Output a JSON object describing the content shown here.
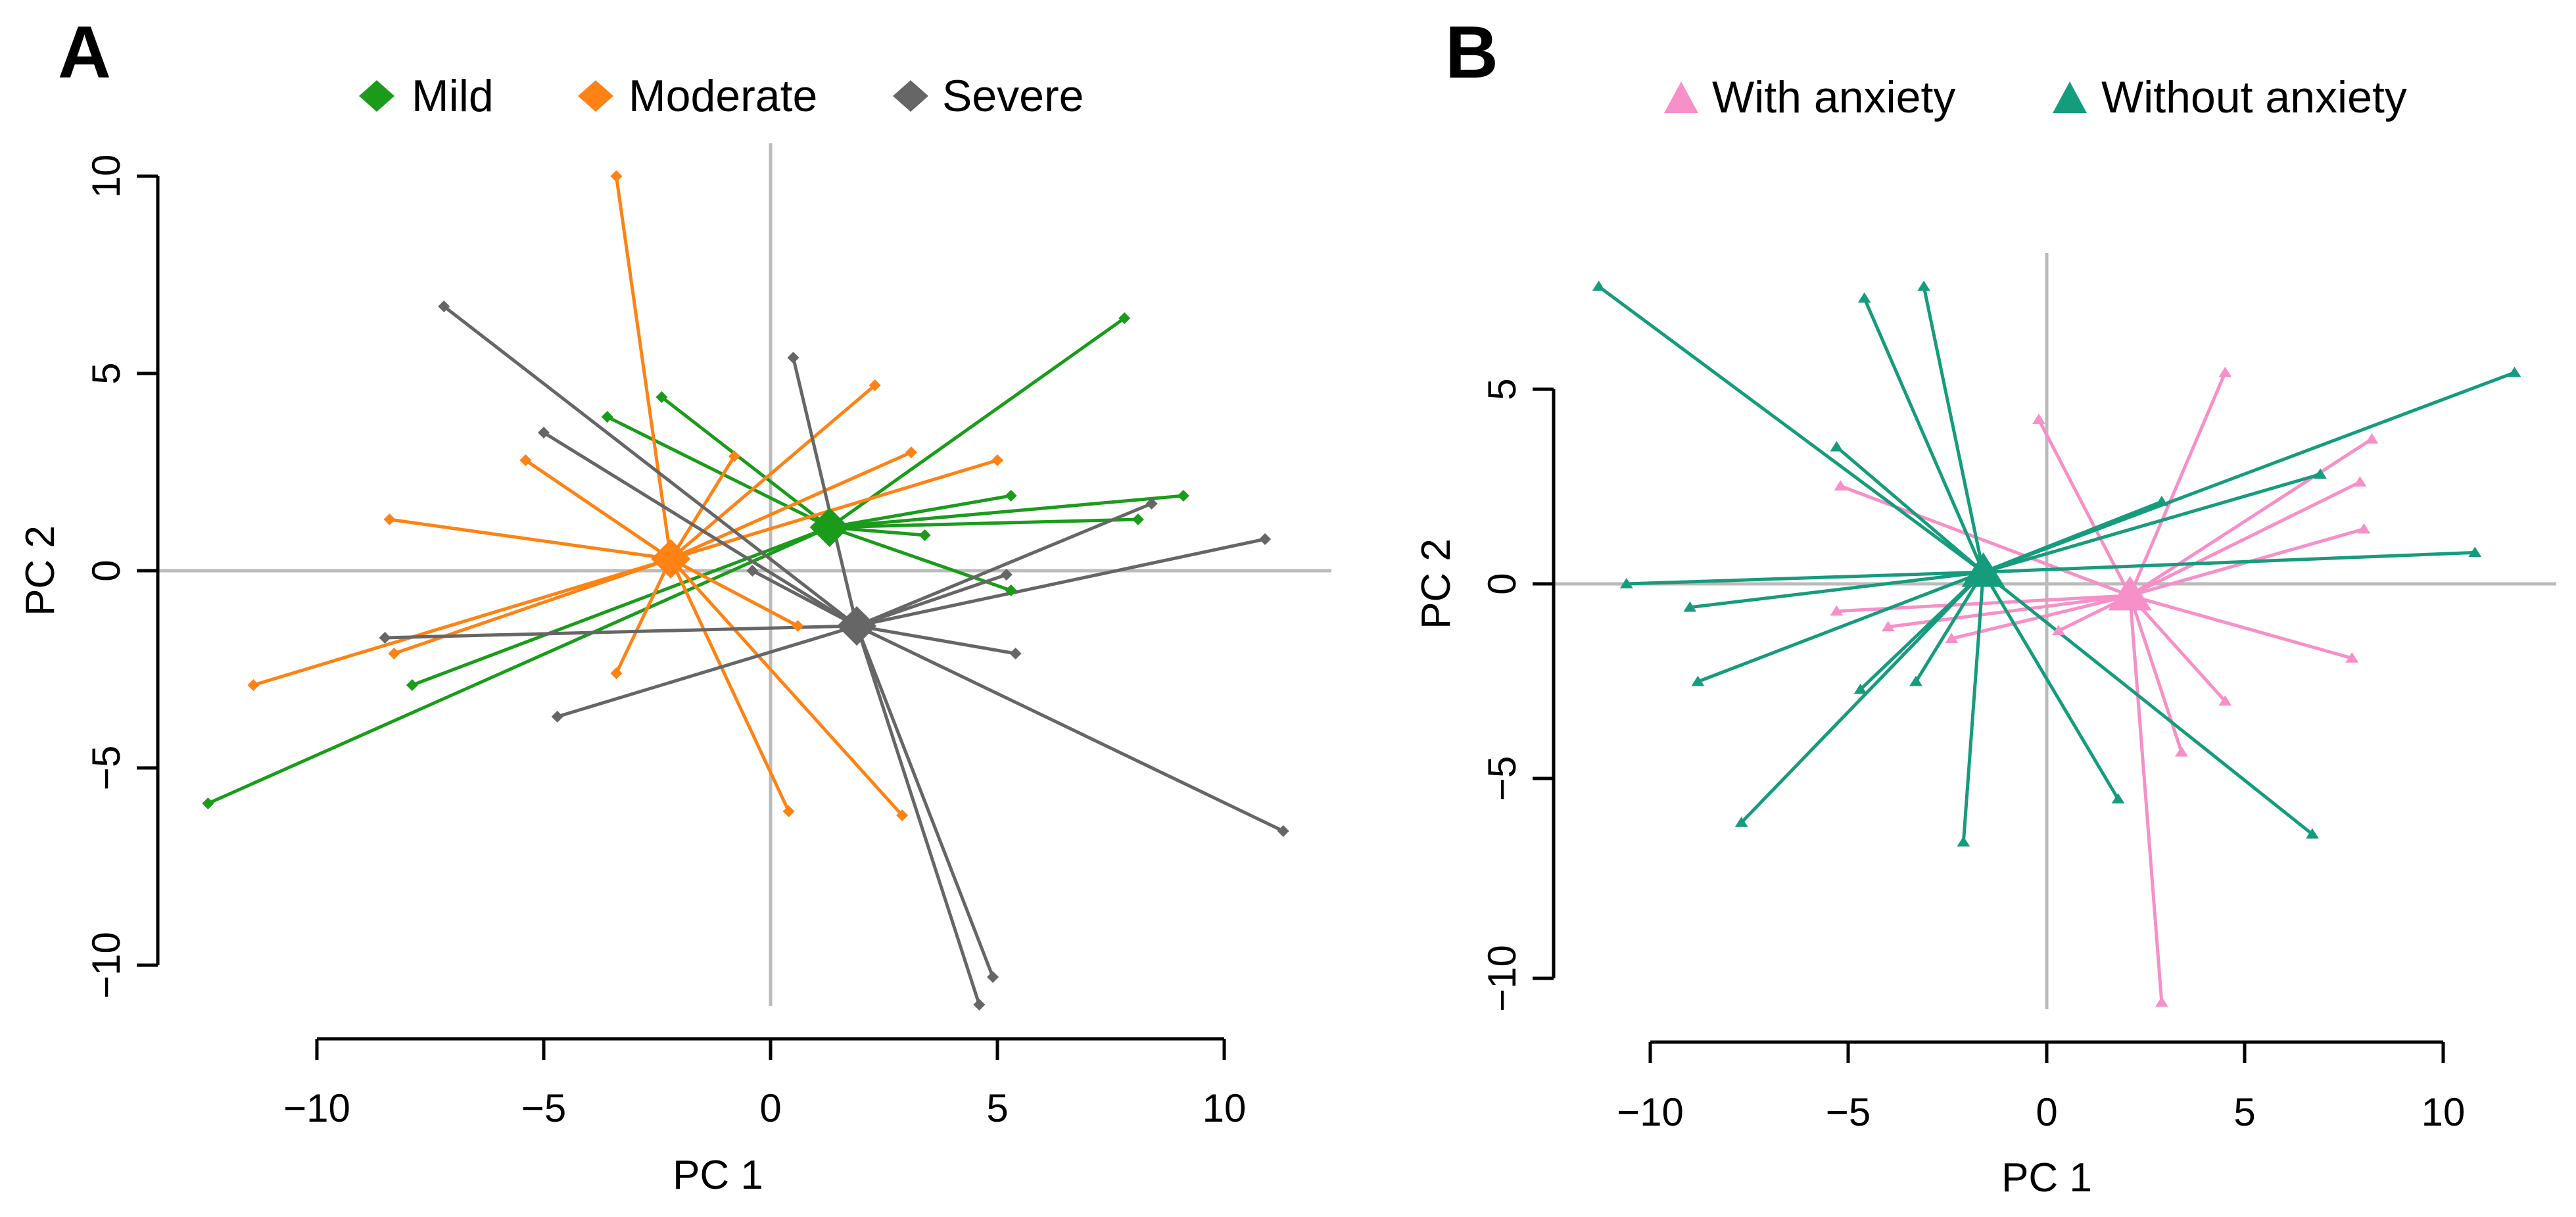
{
  "colors": {
    "mild": "#1a9c1a",
    "moderate": "#ff8214",
    "severe": "#666666",
    "with_anxiety": "#f78fc8",
    "without_anxiety": "#159c7c",
    "axis": "#000000",
    "refline": "#bbbbbb"
  },
  "chart_data": [
    {
      "type": "scatter",
      "panel": "A",
      "xlabel": "PC 1",
      "ylabel": "PC 2",
      "xticks": [
        -10,
        -5,
        0,
        5,
        10
      ],
      "yticks": [
        -10,
        -5,
        0,
        5,
        10
      ],
      "tick_labels_x": [
        "−10",
        "−5",
        "0",
        "5",
        "10"
      ],
      "tick_labels_y": [
        "−10",
        "−5",
        "0",
        "5",
        "10"
      ],
      "xlim": [
        -14.4,
        12.3
      ],
      "ylim": [
        -11.5,
        10.8
      ],
      "legend_position": "top",
      "marker": "diamond",
      "series": [
        {
          "name": "Mild",
          "color_key": "mild",
          "centroid": [
            1.3,
            1.1
          ],
          "points": [
            [
              7.8,
              6.4
            ],
            [
              -2.4,
              4.4
            ],
            [
              -3.6,
              3.9
            ],
            [
              9.1,
              1.9
            ],
            [
              5.3,
              1.9
            ],
            [
              8.1,
              1.3
            ],
            [
              3.4,
              0.9
            ],
            [
              5.3,
              -0.5
            ],
            [
              -7.9,
              -2.9
            ],
            [
              -12.4,
              -5.9
            ]
          ]
        },
        {
          "name": "Moderate",
          "color_key": "moderate",
          "centroid": [
            -2.2,
            0.3
          ],
          "points": [
            [
              -3.4,
              10.0
            ],
            [
              2.3,
              4.7
            ],
            [
              3.1,
              3.0
            ],
            [
              5.0,
              2.8
            ],
            [
              -5.4,
              2.8
            ],
            [
              -0.8,
              2.9
            ],
            [
              -8.4,
              1.3
            ],
            [
              0.6,
              -1.4
            ],
            [
              -11.4,
              -2.9
            ],
            [
              -8.3,
              -2.1
            ],
            [
              -3.4,
              -2.6
            ],
            [
              0.4,
              -6.1
            ],
            [
              2.9,
              -6.2
            ]
          ]
        },
        {
          "name": "Severe",
          "color_key": "severe",
          "centroid": [
            1.9,
            -1.4
          ],
          "points": [
            [
              -7.2,
              6.7
            ],
            [
              0.5,
              5.4
            ],
            [
              -5.0,
              3.5
            ],
            [
              8.4,
              1.7
            ],
            [
              10.9,
              0.8
            ],
            [
              -0.4,
              0.0
            ],
            [
              5.2,
              -0.1
            ],
            [
              -8.5,
              -1.7
            ],
            [
              5.4,
              -2.1
            ],
            [
              -4.7,
              -3.7
            ],
            [
              11.3,
              -6.6
            ],
            [
              4.9,
              -10.3
            ],
            [
              4.6,
              -11.0
            ]
          ]
        }
      ]
    },
    {
      "type": "scatter",
      "panel": "B",
      "xlabel": "PC 1",
      "ylabel": "PC 2",
      "xticks": [
        -10,
        -5,
        0,
        5,
        10
      ],
      "yticks": [
        -10,
        -5,
        0,
        5
      ],
      "tick_labels_x": [
        "−10",
        "−5",
        "0",
        "5",
        "10"
      ],
      "tick_labels_y": [
        "−10",
        "−5",
        "0",
        "5"
      ],
      "xlim": [
        -12.0,
        12.8
      ],
      "ylim": [
        -11.5,
        8.4
      ],
      "legend_position": "top",
      "marker": "triangle",
      "series": [
        {
          "name": "With anxiety",
          "color_key": "with_anxiety",
          "centroid": [
            2.1,
            -0.3
          ],
          "points": [
            [
              4.5,
              5.4
            ],
            [
              -0.2,
              4.2
            ],
            [
              8.2,
              3.7
            ],
            [
              7.9,
              2.6
            ],
            [
              -5.2,
              2.5
            ],
            [
              8.0,
              1.4
            ],
            [
              -5.3,
              -0.7
            ],
            [
              -4.0,
              -1.1
            ],
            [
              0.3,
              -1.2
            ],
            [
              -2.4,
              -1.4
            ],
            [
              7.7,
              -1.9
            ],
            [
              4.5,
              -3.0
            ],
            [
              3.4,
              -4.3
            ],
            [
              2.9,
              -10.7
            ]
          ]
        },
        {
          "name": "Without anxiety",
          "color_key": "without_anxiety",
          "centroid": [
            -1.6,
            0.3
          ],
          "points": [
            [
              -11.3,
              7.6
            ],
            [
              -4.6,
              7.3
            ],
            [
              -3.1,
              7.6
            ],
            [
              11.8,
              5.4
            ],
            [
              -5.3,
              3.5
            ],
            [
              6.9,
              2.8
            ],
            [
              2.9,
              2.1
            ],
            [
              10.8,
              0.8
            ],
            [
              -10.6,
              0.0
            ],
            [
              -9.0,
              -0.6
            ],
            [
              -8.8,
              -2.5
            ],
            [
              -3.3,
              -2.5
            ],
            [
              -4.7,
              -2.7
            ],
            [
              1.8,
              -5.5
            ],
            [
              6.7,
              -6.4
            ],
            [
              -7.7,
              -6.1
            ],
            [
              -2.1,
              -6.6
            ]
          ]
        }
      ]
    }
  ]
}
